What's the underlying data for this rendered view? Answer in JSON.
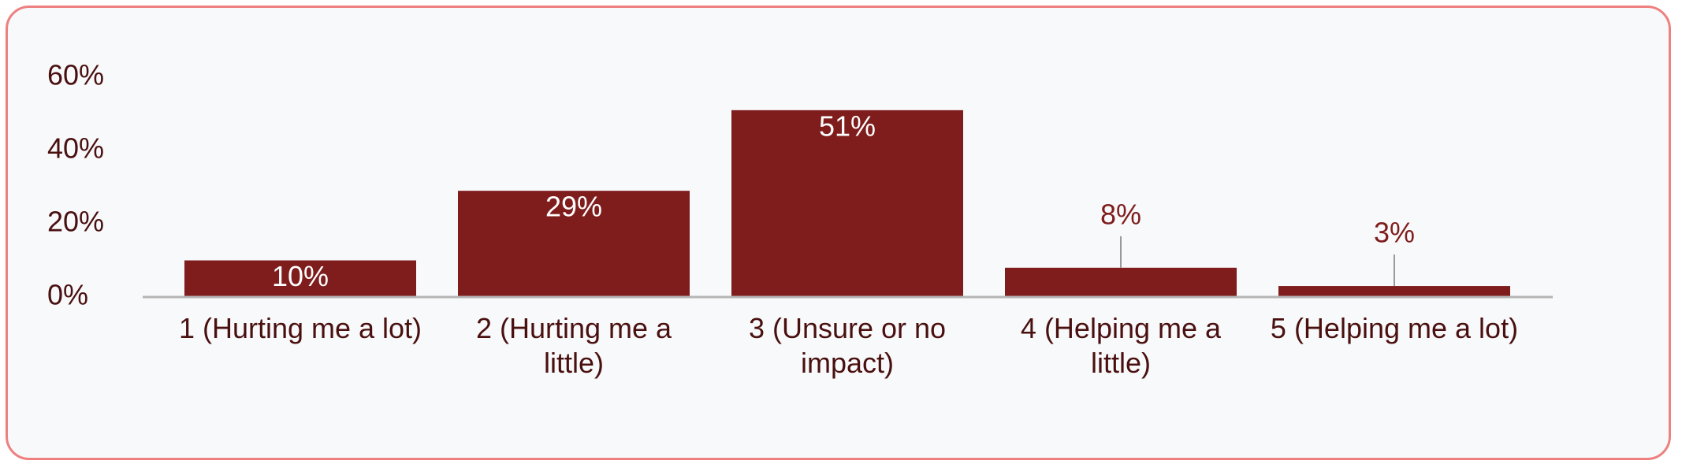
{
  "chart_data": {
    "type": "bar",
    "categories": [
      "1 (Hurting me a lot)",
      "2 (Hurting me a little)",
      "3 (Unsure or no impact)",
      "4 (Helping me a little)",
      "5 (Helping me a lot)"
    ],
    "values": [
      10,
      29,
      51,
      8,
      3
    ],
    "value_labels": [
      "10%",
      "29%",
      "51%",
      "8%",
      "3%"
    ],
    "color": "#7f1d1d",
    "ylim": [
      0,
      60
    ],
    "yticks": [
      {
        "value": 0,
        "label": "0%"
      },
      {
        "value": 20,
        "label": "20%"
      },
      {
        "value": 40,
        "label": "40%"
      },
      {
        "value": 60,
        "label": "60%"
      }
    ]
  }
}
